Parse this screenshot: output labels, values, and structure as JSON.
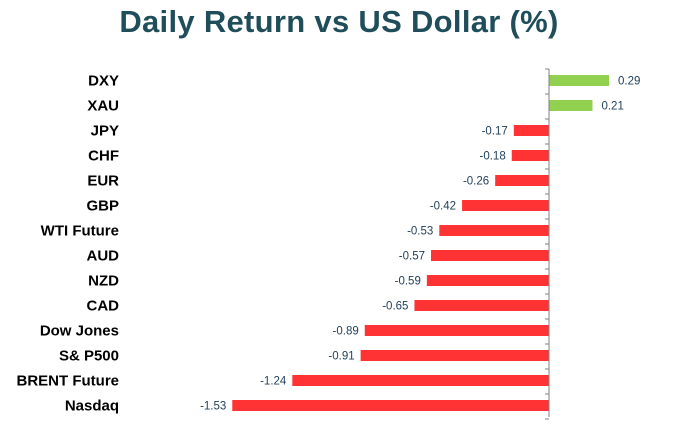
{
  "chart_data": {
    "type": "bar",
    "orientation": "horizontal",
    "title": "Daily Return vs US Dollar (%)",
    "categories": [
      "DXY",
      "XAU",
      "JPY",
      "CHF",
      "EUR",
      "GBP",
      "WTI Future",
      "AUD",
      "NZD",
      "CAD",
      "Dow Jones",
      "S& P500",
      "BRENT Future",
      "Nasdaq"
    ],
    "values": [
      0.29,
      0.21,
      -0.17,
      -0.18,
      -0.26,
      -0.42,
      -0.53,
      -0.57,
      -0.59,
      -0.65,
      -0.89,
      -0.91,
      -1.24,
      -1.53
    ],
    "value_labels": [
      "0.29",
      "0.21",
      "-0.17",
      "-0.18",
      "-0.26",
      "-0.42",
      "-0.53",
      "-0.57",
      "-0.59",
      "-0.65",
      "-0.89",
      "-0.91",
      "-1.24",
      "-1.53"
    ],
    "colors": {
      "positive": "#92d050",
      "negative": "#ff3333",
      "axis": "#808080",
      "title": "#1f4e5a",
      "value_text": "#1f3e5a"
    },
    "xlabel": "",
    "ylabel": "",
    "grid": false,
    "legend": "none"
  }
}
